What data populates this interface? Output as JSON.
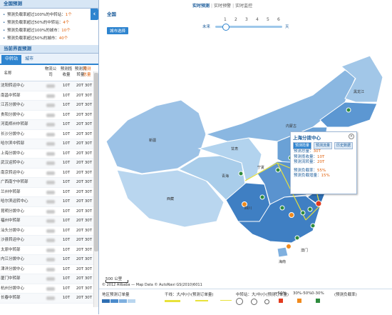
{
  "left": {
    "header": "全国预测",
    "summary": [
      {
        "text": "预测负载率超过100%的中转站：",
        "value": "1个"
      },
      {
        "text": "预测负载率超过50%的中转站：",
        "value": "4个"
      },
      {
        "text": "预测负载率超过100%的城市：",
        "value": "10个"
      },
      {
        "text": "预测负载率超过50%的城市：",
        "value": "40个"
      }
    ],
    "section_header": "当前界面预测",
    "tabs": [
      "中转站",
      "城市"
    ],
    "columns": [
      "名称",
      "物流公司",
      "预测揽收量",
      "预测流转量",
      "预测总量"
    ],
    "rows": [
      {
        "name": "沈阳转运中心",
        "v1": "10T",
        "v2": "20T",
        "v3": "30T"
      },
      {
        "name": "南昌中转部",
        "v1": "10T",
        "v2": "20T",
        "v3": "30T"
      },
      {
        "name": "江苏分拨中心",
        "v1": "10T",
        "v2": "20T",
        "v3": "30T"
      },
      {
        "name": "贵阳分拨中心",
        "v1": "10T",
        "v2": "20T",
        "v3": "30T"
      },
      {
        "name": "河南郑州中转部",
        "v1": "10T",
        "v2": "20T",
        "v3": "30T"
      },
      {
        "name": "长沙分拨中心",
        "v1": "10T",
        "v2": "20T",
        "v3": "30T"
      },
      {
        "name": "哈尔滨中转部",
        "v1": "10T",
        "v2": "20T",
        "v3": "30T"
      },
      {
        "name": "上海分拨中心",
        "v1": "10T",
        "v2": "20T",
        "v3": "30T"
      },
      {
        "name": "武汉运转中心",
        "v1": "10T",
        "v2": "20T",
        "v3": "30T"
      },
      {
        "name": "南京转运中心",
        "v1": "10T",
        "v2": "20T",
        "v3": "30T"
      },
      {
        "name": "广西南宁中转部",
        "v1": "10T",
        "v2": "20T",
        "v3": "30T"
      },
      {
        "name": "兰州中转部",
        "v1": "10T",
        "v2": "20T",
        "v3": "30T"
      },
      {
        "name": "哈尔滨运转中心",
        "v1": "10T",
        "v2": "20T",
        "v3": "30T"
      },
      {
        "name": "昆明分拨中心",
        "v1": "10T",
        "v2": "20T",
        "v3": "30T"
      },
      {
        "name": "福州中转部",
        "v1": "10T",
        "v2": "20T",
        "v3": "30T"
      },
      {
        "name": "汕头分拨中心",
        "v1": "10T",
        "v2": "20T",
        "v3": "30T"
      },
      {
        "name": "沙县转运中心",
        "v1": "10T",
        "v2": "20T",
        "v3": "30T"
      },
      {
        "name": "太原中转部",
        "v1": "10T",
        "v2": "20T",
        "v3": "30T"
      },
      {
        "name": "内江分拨中心",
        "v1": "10T",
        "v2": "20T",
        "v3": "30T"
      },
      {
        "name": "津洋分拨中心",
        "v1": "10T",
        "v2": "20T",
        "v3": "30T"
      },
      {
        "name": "厦门中转部",
        "v1": "10T",
        "v2": "20T",
        "v3": "30T"
      },
      {
        "name": "杭州分拨中心",
        "v1": "10T",
        "v2": "20T",
        "v3": "30T"
      },
      {
        "name": "长春中转部",
        "v1": "10T",
        "v2": "20T",
        "v3": "30T"
      }
    ]
  },
  "topnav": [
    "实时预测",
    "实时预警",
    "实时监控"
  ],
  "region": "全国",
  "pick_button": "城市选择",
  "slider": {
    "numbers": [
      "1",
      "2",
      "3",
      "4",
      "5",
      "6"
    ],
    "left_label": "未来",
    "right_label": "天",
    "value": 2
  },
  "map": {
    "provinces": [
      "黑龙江",
      "新疆",
      "西藏",
      "青海",
      "甘肃",
      "四川",
      "内蒙古",
      "宁夏",
      "海南",
      "澳门"
    ],
    "scale": "500 公里",
    "copyright": "© 2012 Alibaba — Map Data © AutoNavi GS(2010)6011"
  },
  "popup": {
    "title": "上海分拨中心",
    "tabs": [
      "预测揽量",
      "预测流量",
      "历史数据"
    ],
    "lines": [
      {
        "label": "预测总量：",
        "value": "30T"
      },
      {
        "label": "预测揽收量：",
        "value": "10T"
      },
      {
        "label": "预测流转量：",
        "value": "20T"
      }
    ],
    "lines2": [
      {
        "label": "预测负载率：",
        "value": "55%"
      },
      {
        "label": "预测负载增量：",
        "value": "15%"
      }
    ]
  },
  "legend": {
    "area_label": "地区预测订单量",
    "line_label": "干线：大/中/小(预测订单量)",
    "station_label": "中转站：大/中/小(预测订单量)",
    "load_label": "(预测负载率)",
    "load_items": [
      {
        "label": ">50%",
        "color": "#e23a1e"
      },
      {
        "label": "30%-50%",
        "color": "#f08a1d"
      },
      {
        "label": "0-30%",
        "color": "#2e8b3d"
      }
    ],
    "area_colors": [
      "#2f6fb3",
      "#4c8bcc",
      "#7fb0df",
      "#b9d6ef"
    ],
    "line_colors": [
      "#e8e23a",
      "#e8e23a",
      "#e8e23a"
    ]
  }
}
